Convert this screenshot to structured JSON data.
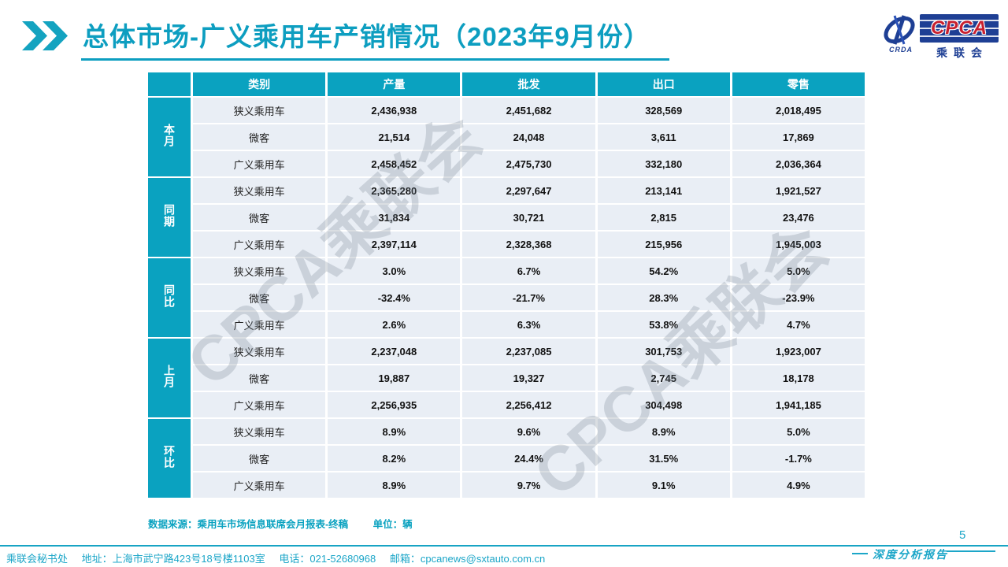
{
  "title": "总体市场-广义乘用车产销情况（2023年9月份）",
  "logo": {
    "crda": "CRDA",
    "cpca": "CPCA",
    "name": "乘联会"
  },
  "table": {
    "headers": [
      "类别",
      "产量",
      "批发",
      "出口",
      "零售"
    ],
    "groups": [
      {
        "label": "本月",
        "rows": [
          {
            "category": "狭义乘用车",
            "values": [
              "2,436,938",
              "2,451,682",
              "328,569",
              "2,018,495"
            ]
          },
          {
            "category": "微客",
            "values": [
              "21,514",
              "24,048",
              "3,611",
              "17,869"
            ]
          },
          {
            "category": "广义乘用车",
            "values": [
              "2,458,452",
              "2,475,730",
              "332,180",
              "2,036,364"
            ]
          }
        ]
      },
      {
        "label": "同期",
        "rows": [
          {
            "category": "狭义乘用车",
            "values": [
              "2,365,280",
              "2,297,647",
              "213,141",
              "1,921,527"
            ]
          },
          {
            "category": "微客",
            "values": [
              "31,834",
              "30,721",
              "2,815",
              "23,476"
            ]
          },
          {
            "category": "广义乘用车",
            "values": [
              "2,397,114",
              "2,328,368",
              "215,956",
              "1,945,003"
            ]
          }
        ]
      },
      {
        "label": "同比",
        "rows": [
          {
            "category": "狭义乘用车",
            "values": [
              "3.0%",
              "6.7%",
              "54.2%",
              "5.0%"
            ]
          },
          {
            "category": "微客",
            "values": [
              "-32.4%",
              "-21.7%",
              "28.3%",
              "-23.9%"
            ]
          },
          {
            "category": "广义乘用车",
            "values": [
              "2.6%",
              "6.3%",
              "53.8%",
              "4.7%"
            ]
          }
        ]
      },
      {
        "label": "上月",
        "rows": [
          {
            "category": "狭义乘用车",
            "values": [
              "2,237,048",
              "2,237,085",
              "301,753",
              "1,923,007"
            ]
          },
          {
            "category": "微客",
            "values": [
              "19,887",
              "19,327",
              "2,745",
              "18,178"
            ]
          },
          {
            "category": "广义乘用车",
            "values": [
              "2,256,935",
              "2,256,412",
              "304,498",
              "1,941,185"
            ]
          }
        ]
      },
      {
        "label": "环比",
        "rows": [
          {
            "category": "狭义乘用车",
            "values": [
              "8.9%",
              "9.6%",
              "8.9%",
              "5.0%"
            ]
          },
          {
            "category": "微客",
            "values": [
              "8.2%",
              "24.4%",
              "31.5%",
              "-1.7%"
            ]
          },
          {
            "category": "广义乘用车",
            "values": [
              "8.9%",
              "9.7%",
              "9.1%",
              "4.9%"
            ]
          }
        ]
      }
    ]
  },
  "source_note": "数据来源：乘用车市场信息联席会月报表-终稿",
  "unit_note": "单位：辆",
  "watermark": "CPCA乘联会",
  "footer": {
    "org": "乘联会秘书处",
    "address": "地址：上海市武宁路423号18号楼1103室",
    "phone": "电话：021-52680968",
    "email": "邮箱：cpcanews@sxtauto.com.cn",
    "page_number": "5",
    "report_label": "深度分析报告"
  },
  "colors": {
    "teal": "#0aa2c0",
    "cell_bg": "#e9eef5",
    "logo_blue": "#1e3f94",
    "logo_red": "#c8202f"
  }
}
